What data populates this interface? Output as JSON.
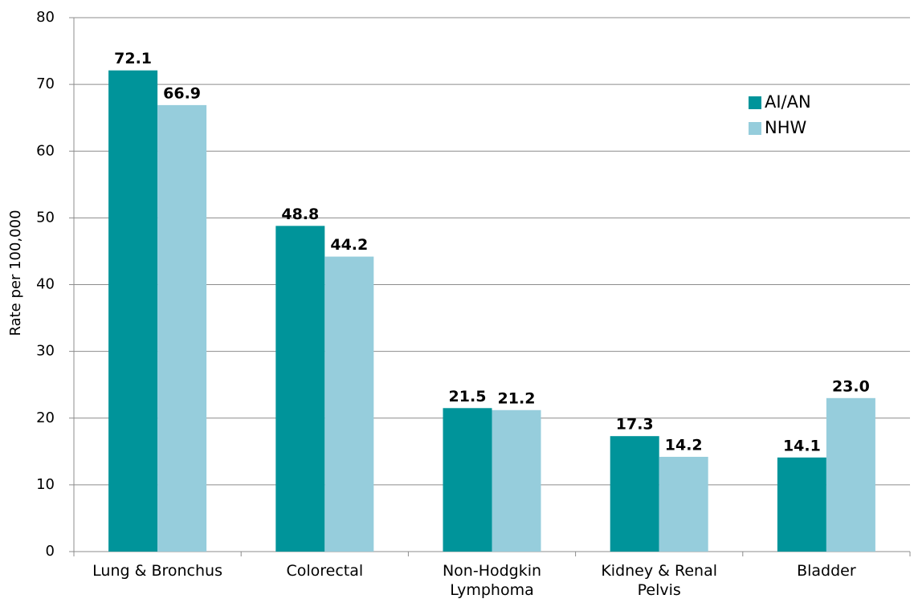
{
  "chart_data": {
    "type": "bar",
    "y_label": "Rate per 100,000",
    "categories": [
      "Lung & Bronchus",
      "Colorectal",
      "Non-Hodgkin Lymphoma",
      "Kidney & Renal Pelvis",
      "Bladder"
    ],
    "series": [
      {
        "name": "AI/AN",
        "color": "#00949a",
        "values": [
          72.1,
          48.8,
          21.5,
          17.3,
          14.1
        ],
        "value_labels": [
          "72.1",
          "48.8",
          "21.5",
          "17.3",
          "14.1"
        ]
      },
      {
        "name": "NHW",
        "color": "#96cddc",
        "values": [
          66.9,
          44.2,
          21.2,
          14.2,
          23.0
        ],
        "value_labels": [
          "66.9",
          "44.2",
          "21.2",
          "14.2",
          "23.0"
        ]
      }
    ],
    "ylim": [
      0,
      80
    ],
    "yticks": [
      0,
      10,
      20,
      30,
      40,
      50,
      60,
      70,
      80
    ],
    "grid": true,
    "legend": "upper-right"
  }
}
